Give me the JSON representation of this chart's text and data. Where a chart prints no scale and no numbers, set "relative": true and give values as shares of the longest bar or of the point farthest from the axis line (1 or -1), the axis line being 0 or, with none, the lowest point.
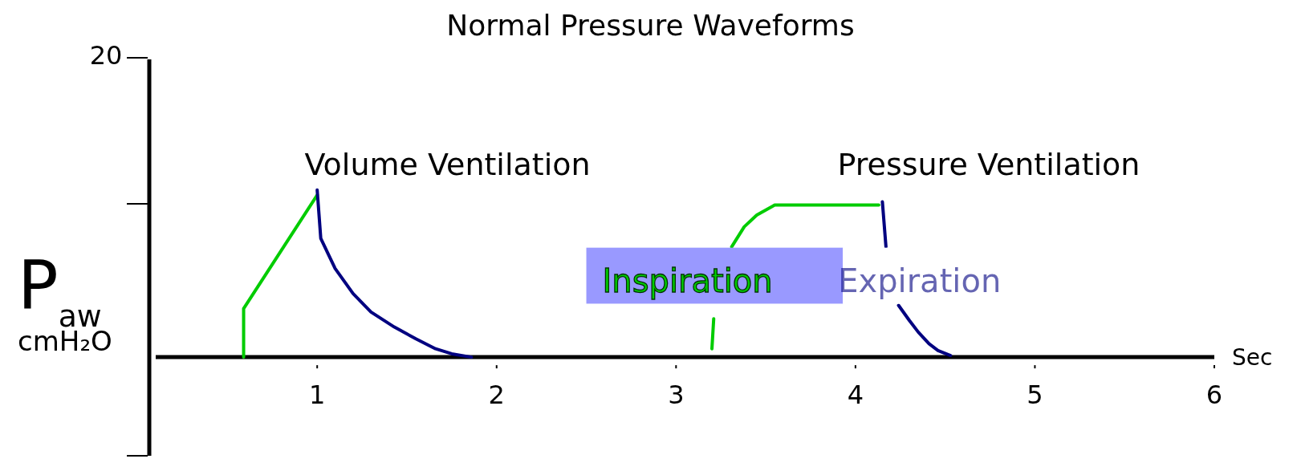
{
  "chart_data": {
    "type": "line",
    "title": "Normal Pressure Waveforms",
    "xlabel": "Sec",
    "ylabel": "P$_{aw}$ cmH₂O",
    "xlim": [
      0.1,
      6
    ],
    "xticks": [
      1,
      2,
      3,
      4,
      5,
      6
    ],
    "relative": true,
    "marker": "none",
    "line_style": "solid",
    "series": [
      {
        "name": "Inspiration",
        "color": "#00cc00",
        "x": [
          0.59,
          0.59,
          0.59,
          1.0,
          null,
          3.2,
          3.21,
          3.23,
          3.27,
          3.31,
          3.38,
          3.45,
          3.55,
          4.13
        ],
        "values": [
          0,
          0.27,
          0.29,
          0.97,
          null,
          0.05,
          0.23,
          null,
          null,
          0.66,
          0.78,
          0.85,
          0.91,
          0.91
        ]
      },
      {
        "name": "Expiration",
        "color": "#000080",
        "x": [
          1.0,
          1.02,
          1.1,
          1.2,
          1.3,
          1.43,
          1.55,
          1.66,
          1.75,
          1.86,
          null,
          4.15,
          4.17,
          4.19,
          4.24,
          4.3,
          4.35,
          4.41,
          4.46,
          4.53
        ],
        "values": [
          1,
          0.71,
          0.53,
          0.38,
          0.27,
          0.18,
          0.11,
          0.05,
          0.02,
          0,
          null,
          0.93,
          0.66,
          null,
          0.31,
          0.22,
          0.15,
          0.08,
          0.04,
          0.01
        ]
      }
    ],
    "annotations": [
      "20",
      "Volume Ventilation",
      "Pressure Ventilation"
    ]
  }
}
